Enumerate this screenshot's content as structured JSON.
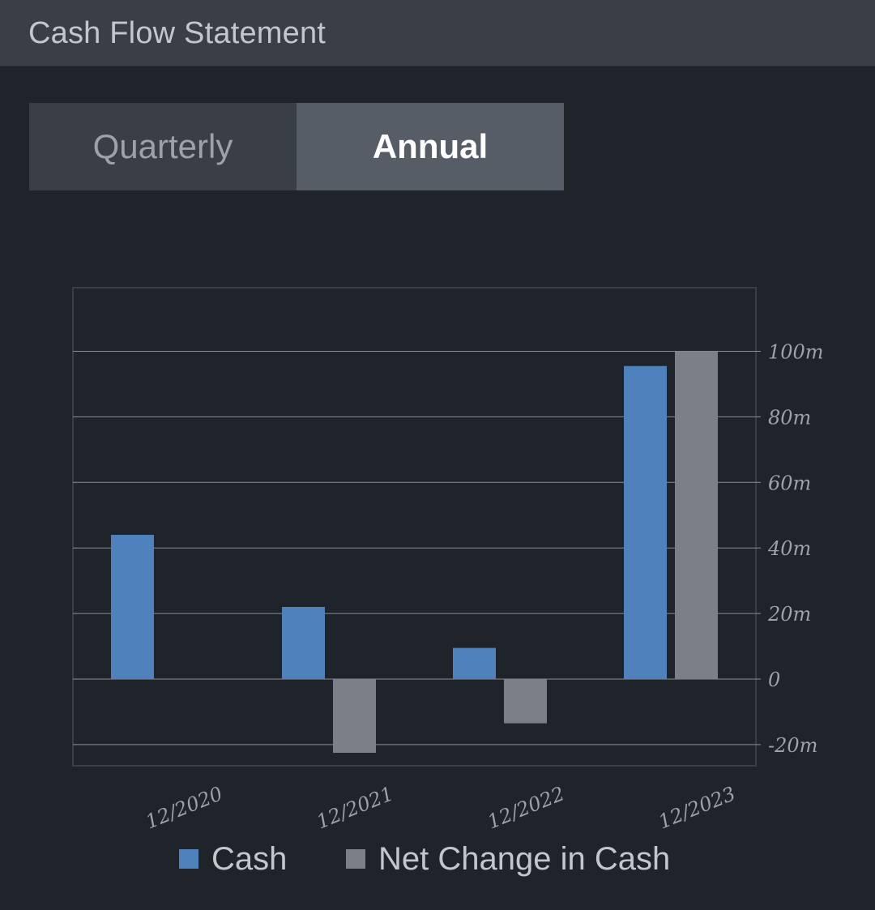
{
  "header": {
    "title": "Cash Flow Statement"
  },
  "tabs": [
    {
      "label": "Quarterly",
      "active": false
    },
    {
      "label": "Annual",
      "active": true
    }
  ],
  "colors": {
    "cash": "#4f81bd",
    "net_change": "#7b8088",
    "background": "#1f232a",
    "header": "#3a3f47",
    "tab_inactive": "#3a3f47",
    "tab_active": "#575d66"
  },
  "chart_data": {
    "type": "bar",
    "categories": [
      "12/2020",
      "12/2021",
      "12/2022",
      "12/2023"
    ],
    "series": [
      {
        "name": "Cash",
        "values": [
          44,
          22,
          9.5,
          95.5
        ]
      },
      {
        "name": "Net Change in Cash",
        "values": [
          null,
          -22.5,
          -13.5,
          100
        ]
      }
    ],
    "ylim": [
      -22,
      115
    ],
    "yticks": [
      {
        "value": 100,
        "label": "100m"
      },
      {
        "value": 80,
        "label": "80m"
      },
      {
        "value": 60,
        "label": "60m"
      },
      {
        "value": 40,
        "label": "40m"
      },
      {
        "value": 20,
        "label": "20m"
      },
      {
        "value": 0,
        "label": "0"
      },
      {
        "value": -20,
        "label": "-20m"
      }
    ],
    "grid": true,
    "y_axis_position": "right",
    "legend_position": "bottom"
  },
  "legend": {
    "items": [
      "Cash",
      "Net Change in Cash"
    ]
  }
}
